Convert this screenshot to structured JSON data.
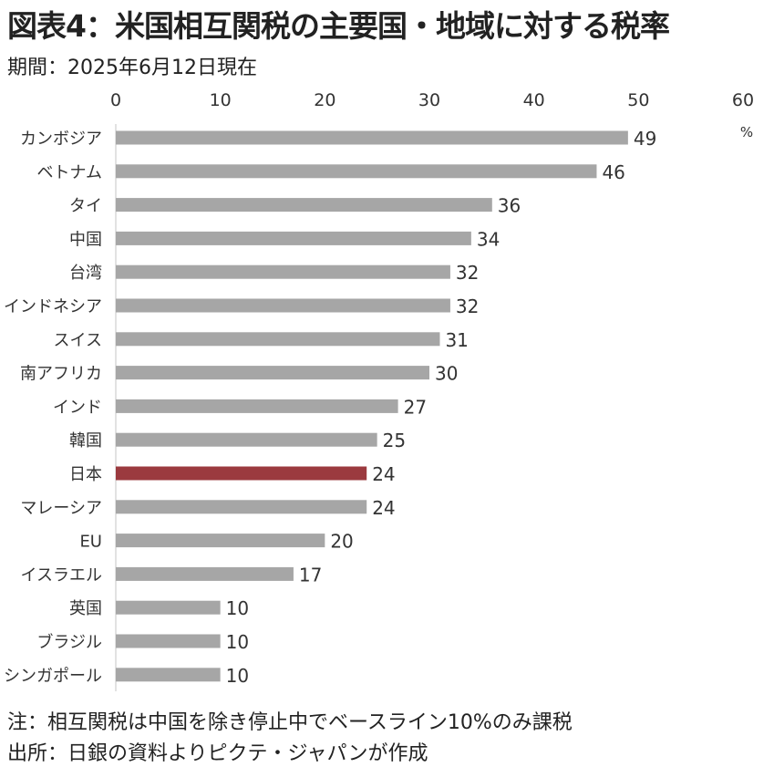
{
  "title": "図表4：米国相互関税の主要国・地域に対する税率",
  "subtitle": "期間：2025年6月12日現在",
  "notes": {
    "note": "注：相互関税は中国を除き停止中でベースライン10%のみ課税",
    "source": "出所：日銀の資料よりピクテ・ジャパンが作成"
  },
  "colors": {
    "bar": "#a6a6a6",
    "highlight": "#9b3a3f",
    "axis": "#d9d9d9"
  },
  "chart_data": {
    "type": "bar",
    "orientation": "horizontal",
    "unit": "%",
    "xlim": [
      0,
      60
    ],
    "ticks": [
      0,
      10,
      20,
      30,
      40,
      50,
      60
    ],
    "highlight": "日本",
    "categories": [
      "カンボジア",
      "ベトナム",
      "タイ",
      "中国",
      "台湾",
      "インドネシア",
      "スイス",
      "南アフリカ",
      "インド",
      "韓国",
      "日本",
      "マレーシア",
      "EU",
      "イスラエル",
      "英国",
      "ブラジル",
      "シンガポール"
    ],
    "values": [
      49,
      46,
      36,
      34,
      32,
      32,
      31,
      30,
      27,
      25,
      24,
      24,
      20,
      17,
      10,
      10,
      10
    ]
  }
}
